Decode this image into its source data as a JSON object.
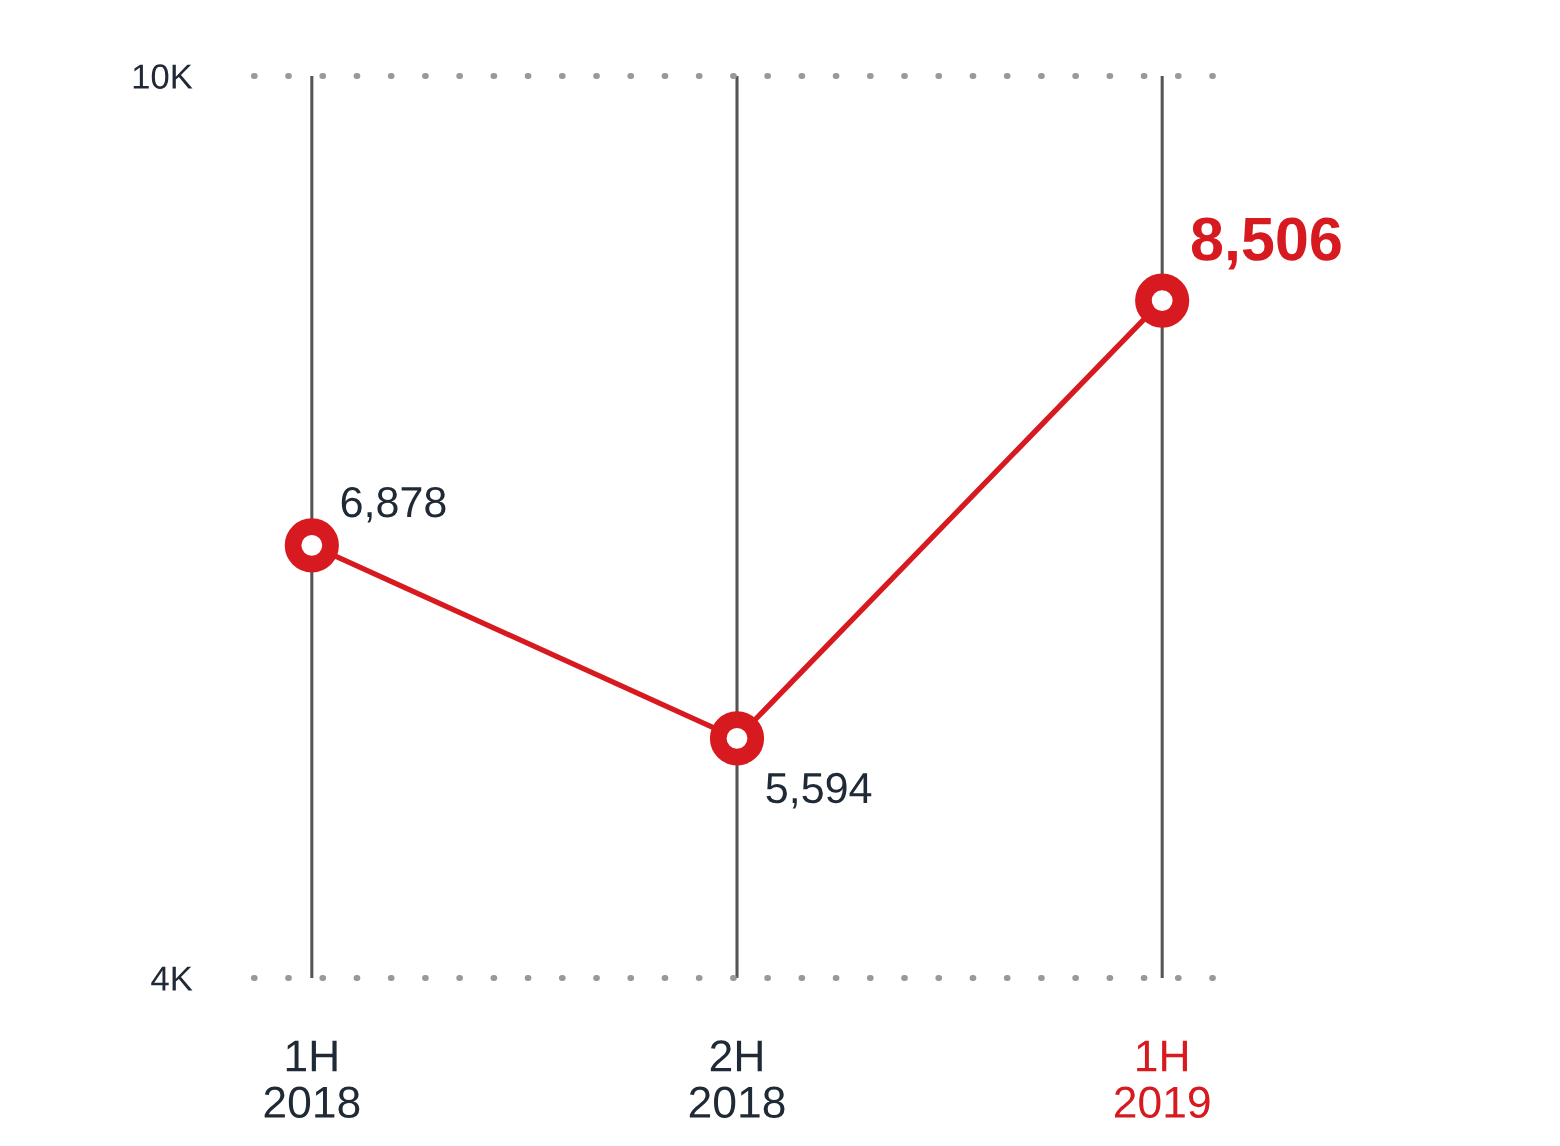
{
  "chart_data": {
    "type": "line",
    "categories": [
      "1H\n2018",
      "2H\n2018",
      "1H\n2019"
    ],
    "series": [
      {
        "color": "#d71920",
        "values": [
          6878,
          5594,
          8506
        ],
        "value_labels": [
          "6,878",
          "5,594",
          "8,506"
        ]
      }
    ],
    "ylim": [
      4000,
      10000
    ],
    "yticks": [
      {
        "value": 4000,
        "label": "4K"
      },
      {
        "value": 10000,
        "label": "10K"
      }
    ],
    "grid": true,
    "marker": "circle",
    "line_style": "solid"
  }
}
